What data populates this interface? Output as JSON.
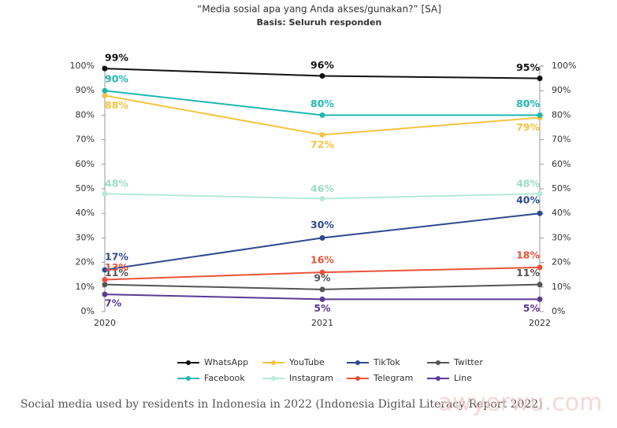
{
  "chart_data": {
    "type": "line",
    "title": "“Media sosial apa yang Anda akses/gunakan?” [SA]",
    "subtitle": "Basis: Seluruh responden",
    "caption": "Social media used by residents in Indonesia in 2022 (Indonesia Digital Literacy Report 2022)",
    "watermark": "awyerwu.com",
    "categories": [
      "2020",
      "2021",
      "2022"
    ],
    "ylim": [
      0,
      100
    ],
    "yticks": [
      {
        "value": 0,
        "label": "0%"
      },
      {
        "value": 10,
        "label": "10%"
      },
      {
        "value": 20,
        "label": "20%"
      },
      {
        "value": 30,
        "label": "30%"
      },
      {
        "value": 40,
        "label": "40%"
      },
      {
        "value": 50,
        "label": "50%"
      },
      {
        "value": 60,
        "label": "60%"
      },
      {
        "value": 70,
        "label": "70%"
      },
      {
        "value": 80,
        "label": "80%"
      },
      {
        "value": 90,
        "label": "90%"
      },
      {
        "value": 100,
        "label": "100%"
      }
    ],
    "y2lim": [
      0,
      100
    ],
    "y2ticks": [
      {
        "value": 0,
        "label": "0%"
      },
      {
        "value": 10,
        "label": "10%"
      },
      {
        "value": 20,
        "label": "20%"
      },
      {
        "value": 30,
        "label": "30%"
      },
      {
        "value": 40,
        "label": "40%"
      },
      {
        "value": 50,
        "label": "50%"
      },
      {
        "value": 60,
        "label": "60%"
      },
      {
        "value": 70,
        "label": "70%"
      },
      {
        "value": 80,
        "label": "80%"
      },
      {
        "value": 90,
        "label": "90%"
      },
      {
        "value": 100,
        "label": "100%"
      }
    ],
    "legend": "bottom",
    "series": [
      {
        "name": "WhatsApp",
        "color": "#111111",
        "values": [
          99,
          96,
          95
        ],
        "value_labels": [
          "99%",
          "96%",
          "95%"
        ]
      },
      {
        "name": "YouTube",
        "color": "#f5c342",
        "values": [
          88,
          72,
          79
        ],
        "value_labels": [
          "88%",
          "72%",
          "79%"
        ]
      },
      {
        "name": "TikTok",
        "color": "#2e4a8f",
        "values": [
          17,
          30,
          40
        ],
        "value_labels": [
          "17%",
          "30%",
          "40%"
        ]
      },
      {
        "name": "Twitter",
        "color": "#555555",
        "values": [
          11,
          9,
          11
        ],
        "value_labels": [
          "11%",
          "9%",
          "11%"
        ]
      },
      {
        "name": "Facebook",
        "color": "#1fb8b0",
        "values": [
          90,
          80,
          80
        ],
        "value_labels": [
          "90%",
          "80%",
          "80%"
        ]
      },
      {
        "name": "Instagram",
        "color": "#b5ead9",
        "values": [
          48,
          46,
          48
        ],
        "value_labels": [
          "48%",
          "46%",
          "48%"
        ]
      },
      {
        "name": "Telegram",
        "color": "#e8533a",
        "values": [
          13,
          16,
          18
        ],
        "value_labels": [
          "13%",
          "16%",
          "18%"
        ]
      },
      {
        "name": "Line",
        "color": "#5b3a96",
        "values": [
          7,
          5,
          5
        ],
        "value_labels": [
          "7%",
          "5%",
          "5%"
        ]
      }
    ]
  }
}
